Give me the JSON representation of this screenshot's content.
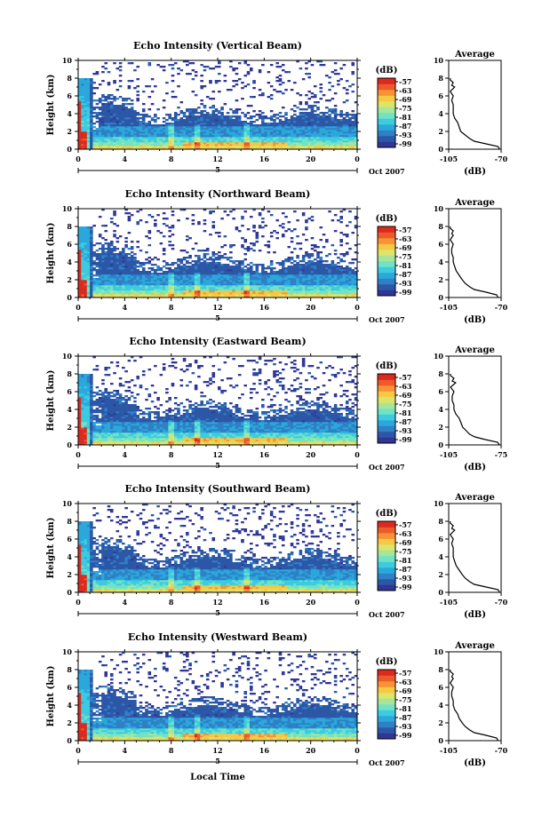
{
  "colors": {
    "colormap": [
      "#313695",
      "#2c57a6",
      "#2f80c6",
      "#2aa8dc",
      "#3ccbe0",
      "#6ee3c6",
      "#a6e59a",
      "#dbe56a",
      "#f7c842",
      "#f89236",
      "#ee5a2a",
      "#dd2a1e"
    ],
    "line": "#000000",
    "background": "#ffffff"
  },
  "figure": {
    "xlabel": "Local Time"
  },
  "chart_data": [
    {
      "type": "heatmap",
      "title": "Echo Intensity (Vertical Beam)",
      "ylabel": "Height (km)",
      "ylim": [
        0,
        10
      ],
      "xlim": [
        0,
        24
      ],
      "xticks": [
        "0",
        "4",
        "8",
        "12",
        "16",
        "20",
        "0"
      ],
      "yticks": [
        "0",
        "2",
        "4",
        "6",
        "8",
        "10"
      ],
      "date_label": "Oct 2007",
      "day_label": "5",
      "colorbar": {
        "unit": "(dB)",
        "ticks": [
          "-57",
          "-63",
          "-69",
          "-75",
          "-81",
          "-87",
          "-93",
          "-99"
        ],
        "range": [
          -105,
          -55
        ]
      },
      "profile": {
        "title": "Average",
        "xlabel": "(dB)",
        "xticks": [
          "-105",
          "-70"
        ],
        "xlim": [
          -105,
          -70
        ],
        "ylim": [
          0,
          10
        ],
        "yticks": [
          "0",
          "2",
          "4",
          "6",
          "8",
          "10"
        ],
        "height_km": [
          0.0,
          0.3,
          0.6,
          0.9,
          1.2,
          1.6,
          2.0,
          2.5,
          3.0,
          3.5,
          4.0,
          4.5,
          5.0,
          5.5,
          6.0,
          6.5,
          7.0,
          7.2,
          7.5,
          7.8,
          8.0
        ],
        "echo_db": [
          -71,
          -72,
          -80,
          -88,
          -91,
          -94,
          -97,
          -98,
          -99,
          -101,
          -102,
          -102,
          -102,
          -103,
          -102,
          -104,
          -101,
          -103,
          -102,
          -104,
          -104
        ]
      }
    },
    {
      "type": "heatmap",
      "title": "Echo Intensity (Northward Beam)",
      "ylabel": "Height (km)",
      "ylim": [
        0,
        10
      ],
      "xlim": [
        0,
        24
      ],
      "xticks": [
        "0",
        "4",
        "8",
        "12",
        "16",
        "20",
        "0"
      ],
      "yticks": [
        "0",
        "2",
        "4",
        "6",
        "8",
        "10"
      ],
      "date_label": "Oct 2007",
      "day_label": "5",
      "colorbar": {
        "unit": "(dB)",
        "ticks": [
          "-57",
          "-63",
          "-69",
          "-75",
          "-81",
          "-87",
          "-93",
          "-99"
        ],
        "range": [
          -105,
          -55
        ]
      },
      "profile": {
        "title": "Average",
        "xlabel": "(dB)",
        "xticks": [
          "-105",
          "-70"
        ],
        "xlim": [
          -105,
          -70
        ],
        "ylim": [
          0,
          10
        ],
        "yticks": [
          "0",
          "2",
          "4",
          "6",
          "8",
          "10"
        ],
        "height_km": [
          0.0,
          0.3,
          0.6,
          0.9,
          1.2,
          1.6,
          2.0,
          2.5,
          3.0,
          3.5,
          4.0,
          4.5,
          5.0,
          5.5,
          6.0,
          6.5,
          7.0,
          7.2,
          7.5,
          7.8,
          8.0
        ],
        "echo_db": [
          -72,
          -73,
          -80,
          -88,
          -91,
          -94,
          -96,
          -98,
          -100,
          -101,
          -102,
          -102,
          -103,
          -103,
          -102,
          -104,
          -102,
          -103,
          -102,
          -104,
          -104
        ]
      }
    },
    {
      "type": "heatmap",
      "title": "Echo Intensity (Eastward Beam)",
      "ylabel": "Height (km)",
      "ylim": [
        0,
        10
      ],
      "xlim": [
        0,
        24
      ],
      "xticks": [
        "0",
        "4",
        "8",
        "12",
        "16",
        "20",
        "0"
      ],
      "yticks": [
        "0",
        "2",
        "4",
        "6",
        "8",
        "10"
      ],
      "date_label": "Oct 2007",
      "day_label": "5",
      "colorbar": {
        "unit": "(dB)",
        "ticks": [
          "-57",
          "-63",
          "-69",
          "-75",
          "-81",
          "-87",
          "-93",
          "-99"
        ],
        "range": [
          -105,
          -55
        ]
      },
      "profile": {
        "title": "Average",
        "xlabel": "(dB)",
        "xticks": [
          "-105",
          "-75"
        ],
        "xlim": [
          -105,
          -75
        ],
        "ylim": [
          0,
          10
        ],
        "yticks": [
          "0",
          "2",
          "4",
          "6",
          "8",
          "10"
        ],
        "height_km": [
          0.0,
          0.3,
          0.6,
          0.9,
          1.2,
          1.6,
          2.0,
          2.5,
          3.0,
          3.5,
          4.0,
          4.5,
          5.0,
          5.5,
          6.0,
          6.5,
          7.0,
          7.2,
          7.5,
          7.8,
          8.0
        ],
        "echo_db": [
          -76,
          -77,
          -84,
          -90,
          -93,
          -95,
          -97,
          -98,
          -99,
          -101,
          -102,
          -102,
          -103,
          -103,
          -102,
          -104,
          -101,
          -103,
          -102,
          -104,
          -104
        ]
      }
    },
    {
      "type": "heatmap",
      "title": "Echo Intensity (Southward Beam)",
      "ylabel": "Height (km)",
      "ylim": [
        0,
        10
      ],
      "xlim": [
        0,
        24
      ],
      "xticks": [
        "0",
        "4",
        "8",
        "12",
        "16",
        "20",
        "0"
      ],
      "yticks": [
        "0",
        "2",
        "4",
        "6",
        "8",
        "10"
      ],
      "date_label": "Oct 2007",
      "day_label": "5",
      "colorbar": {
        "unit": "(dB)",
        "ticks": [
          "-57",
          "-63",
          "-69",
          "-75",
          "-81",
          "-87",
          "-93",
          "-99"
        ],
        "range": [
          -105,
          -55
        ]
      },
      "profile": {
        "title": "Average",
        "xlabel": "(dB)",
        "xticks": [
          "-105",
          "-70"
        ],
        "xlim": [
          -105,
          -70
        ],
        "ylim": [
          0,
          10
        ],
        "yticks": [
          "0",
          "2",
          "4",
          "6",
          "8",
          "10"
        ],
        "height_km": [
          0.0,
          0.3,
          0.6,
          0.9,
          1.2,
          1.6,
          2.0,
          2.5,
          3.0,
          3.5,
          4.0,
          4.5,
          5.0,
          5.5,
          6.0,
          6.5,
          7.0,
          7.2,
          7.5,
          7.8,
          8.0
        ],
        "echo_db": [
          -71,
          -72,
          -80,
          -88,
          -91,
          -94,
          -96,
          -98,
          -100,
          -101,
          -102,
          -102,
          -102,
          -103,
          -102,
          -104,
          -101,
          -103,
          -102,
          -104,
          -104
        ]
      }
    },
    {
      "type": "heatmap",
      "title": "Echo Intensity (Westward Beam)",
      "ylabel": "Height (km)",
      "ylim": [
        0,
        10
      ],
      "xlim": [
        0,
        24
      ],
      "xticks": [
        "0",
        "4",
        "8",
        "12",
        "16",
        "20",
        "0"
      ],
      "yticks": [
        "0",
        "2",
        "4",
        "6",
        "8",
        "10"
      ],
      "date_label": "Oct 2007",
      "day_label": "5",
      "colorbar": {
        "unit": "(dB)",
        "ticks": [
          "-57",
          "-63",
          "-69",
          "-75",
          "-81",
          "-87",
          "-93",
          "-99"
        ],
        "range": [
          -105,
          -55
        ]
      },
      "profile": {
        "title": "Average",
        "xlabel": "(dB)",
        "xticks": [
          "-105",
          "-70"
        ],
        "xlim": [
          -105,
          -70
        ],
        "ylim": [
          0,
          10
        ],
        "yticks": [
          "0",
          "2",
          "4",
          "6",
          "8",
          "10"
        ],
        "height_km": [
          0.0,
          0.3,
          0.6,
          0.9,
          1.2,
          1.6,
          2.0,
          2.5,
          3.0,
          3.5,
          4.0,
          4.5,
          5.0,
          5.5,
          6.0,
          6.5,
          7.0,
          7.2,
          7.5,
          7.8,
          8.0
        ],
        "echo_db": [
          -72,
          -73,
          -80,
          -88,
          -91,
          -94,
          -96,
          -98,
          -99,
          -101,
          -102,
          -102,
          -103,
          -103,
          -102,
          -104,
          -102,
          -103,
          -102,
          -104,
          -104
        ]
      }
    }
  ]
}
